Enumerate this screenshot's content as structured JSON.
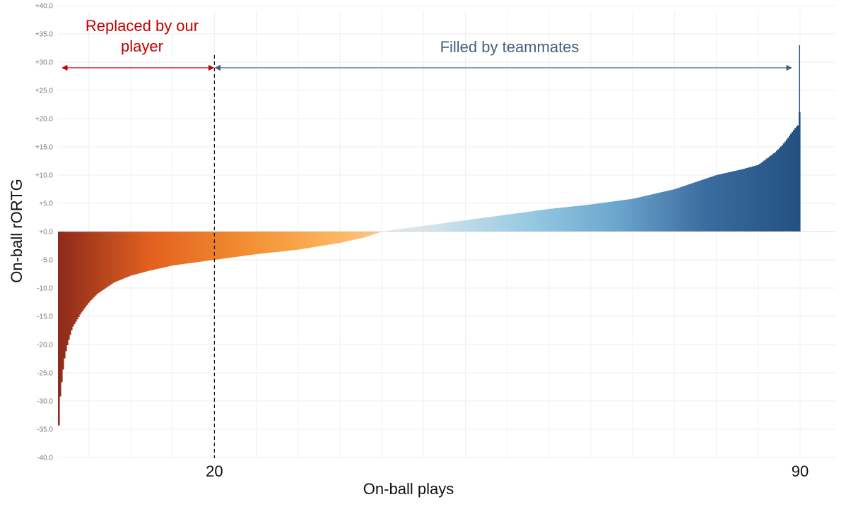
{
  "chart_data": {
    "type": "bar",
    "title": "",
    "xlabel": "On-ball plays",
    "ylabel": "On-ball rORTG",
    "ylim": [
      -40,
      40
    ],
    "yticks": [
      "+40.0",
      "+35.0",
      "+30.0",
      "+25.0",
      "+20.0",
      "+15.0",
      "+10.0",
      "+5.0",
      "+0.0",
      "-5.0",
      "-10.0",
      "-15.0",
      "-20.0",
      "-25.0",
      "-30.0",
      "-35.0",
      "-40.0"
    ],
    "xlim": [
      1.3,
      91.3
    ],
    "xticks": [
      {
        "value": 20,
        "label": "20"
      },
      {
        "value": 90,
        "label": "90"
      }
    ],
    "grid": true,
    "sorted_values_profile": {
      "x": [
        1.3,
        1.5,
        1.8,
        2.1,
        2.5,
        3.0,
        4.0,
        5.0,
        6.0,
        8.0,
        10.0,
        12.0,
        15.0,
        20.0,
        25.0,
        30.0,
        35.0,
        38.0,
        40.0,
        45.0,
        50.0,
        55.0,
        60.0,
        65.0,
        70.0,
        75.0,
        78.0,
        80.0,
        83.0,
        85.0,
        87.0,
        88.0,
        89.0,
        89.5,
        89.9,
        90.0
      ],
      "values": [
        -37.5,
        -30.0,
        -25.5,
        -22.0,
        -19.5,
        -17.0,
        -14.5,
        -12.5,
        -11.0,
        -9.0,
        -7.8,
        -7.0,
        -6.0,
        -5.0,
        -4.0,
        -3.2,
        -2.0,
        -1.0,
        0.0,
        1.0,
        2.0,
        3.0,
        4.0,
        4.8,
        5.8,
        7.5,
        9.0,
        10.0,
        11.0,
        11.8,
        14.0,
        15.5,
        17.5,
        18.5,
        19.0,
        33.0
      ]
    },
    "reference_line": {
      "x": 20,
      "style": "dashed"
    },
    "colors": {
      "negative_gradient": [
        "#8b2a1c",
        "#e2601f",
        "#f28c30",
        "#fdb45c",
        "#f3d9b4"
      ],
      "positive_gradient": [
        "#d9e4ec",
        "#9ccde4",
        "#6ea8cf",
        "#3b6c9f",
        "#23507f"
      ],
      "replaced_annotation": "#c00000",
      "filled_annotation": "#44607e"
    },
    "annotations": [
      {
        "text_lines": [
          "Replaced by our",
          "player"
        ],
        "arrow_from_x": 1.3,
        "arrow_to_x": 20,
        "arrow_y": 29,
        "color": "#c00000"
      },
      {
        "text_lines": [
          "Filled by teammates"
        ],
        "arrow_from_x": 20,
        "arrow_to_x": 89.5,
        "arrow_y": 29,
        "color": "#44607e"
      }
    ]
  }
}
